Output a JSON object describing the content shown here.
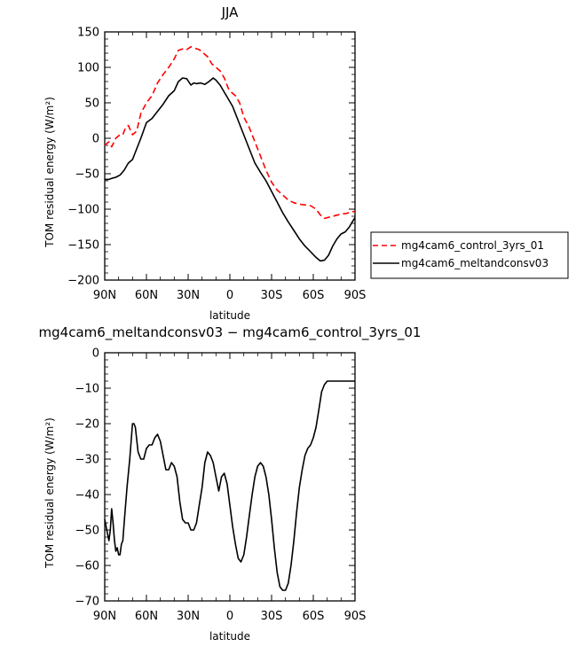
{
  "chart_data": [
    {
      "type": "line",
      "title": "JJA",
      "xlabel": "latitude",
      "ylabel": "TOM residual energy  (W/m²)",
      "xlim": [
        -90,
        90
      ],
      "xticks": [
        "90N",
        "60N",
        "30N",
        "0",
        "30S",
        "60S",
        "90S"
      ],
      "ylim": [
        -200,
        150
      ],
      "yticks": [
        "150",
        "100",
        "50",
        "0",
        "−50",
        "−100",
        "−150",
        "−200"
      ],
      "x_note": "x = latitude position, -90 = 90N (left) to 90 = 90S (right)",
      "series": [
        {
          "name": "mg4cam6_control_3yrs_01",
          "color": "#ff0000",
          "dash": "dashed",
          "x": [
            -90,
            -87,
            -85,
            -82,
            -79,
            -77,
            -75,
            -73,
            -70,
            -67,
            -64,
            -60,
            -56,
            -52,
            -48,
            -44,
            -40,
            -37,
            -34,
            -31,
            -28,
            -25,
            -22,
            -19,
            -16,
            -13,
            -10,
            -7,
            -4,
            -1,
            1,
            4,
            7,
            10,
            14,
            18,
            22,
            26,
            30,
            34,
            38,
            42,
            46,
            50,
            54,
            58,
            62,
            65,
            68,
            72,
            76,
            80,
            84,
            87,
            90
          ],
          "values": [
            -10,
            -5,
            -12,
            0,
            5,
            5,
            15,
            18,
            5,
            10,
            35,
            50,
            60,
            78,
            90,
            100,
            112,
            124,
            126,
            125,
            129,
            127,
            125,
            120,
            115,
            105,
            100,
            95,
            85,
            70,
            65,
            60,
            50,
            30,
            15,
            -5,
            -25,
            -45,
            -62,
            -73,
            -80,
            -87,
            -91,
            -93,
            -94,
            -95,
            -100,
            -108,
            -113,
            -111,
            -109,
            -107,
            -106,
            -104,
            -103
          ]
        },
        {
          "name": "mg4cam6_meltandconsv03",
          "color": "#000000",
          "dash": "solid",
          "x": [
            -90,
            -87,
            -84,
            -82,
            -79,
            -76,
            -73,
            -70,
            -67,
            -64,
            -60,
            -56,
            -52,
            -48,
            -44,
            -40,
            -37,
            -34,
            -31,
            -28,
            -26,
            -24,
            -21,
            -18,
            -15,
            -12,
            -10,
            -7,
            -4,
            -1,
            2,
            5,
            8,
            11,
            14,
            18,
            22,
            26,
            30,
            34,
            38,
            42,
            46,
            50,
            54,
            58,
            62,
            65,
            68,
            71,
            74,
            77,
            80,
            83,
            86,
            88,
            90
          ],
          "values": [
            -58,
            -58,
            -56,
            -55,
            -52,
            -45,
            -35,
            -30,
            -15,
            0,
            22,
            28,
            38,
            48,
            60,
            67,
            80,
            85,
            84,
            75,
            78,
            77,
            78,
            76,
            80,
            85,
            82,
            75,
            65,
            55,
            45,
            30,
            15,
            0,
            -15,
            -35,
            -48,
            -60,
            -75,
            -90,
            -105,
            -118,
            -130,
            -142,
            -152,
            -160,
            -168,
            -173,
            -172,
            -165,
            -152,
            -142,
            -135,
            -132,
            -125,
            -118,
            -112
          ]
        }
      ],
      "legend": "bottom-right, outside plot"
    },
    {
      "type": "line",
      "title": "mg4cam6_meltandconsv03 − mg4cam6_control_3yrs_01",
      "xlabel": "latitude",
      "ylabel": "TOM residual energy  (W/m²)",
      "xlim": [
        -90,
        90
      ],
      "xticks": [
        "90N",
        "60N",
        "30N",
        "0",
        "30S",
        "60S",
        "90S"
      ],
      "ylim": [
        -70,
        0
      ],
      "yticks": [
        "0",
        "−10",
        "−20",
        "−30",
        "−40",
        "−50",
        "−60",
        "−70"
      ],
      "series": [
        {
          "name": "difference",
          "color": "#000000",
          "dash": "solid",
          "x": [
            -90,
            -88,
            -87,
            -86,
            -85,
            -84,
            -83,
            -82,
            -81,
            -80,
            -79,
            -78,
            -77,
            -76,
            -74,
            -72,
            -70,
            -69,
            -68,
            -66,
            -64,
            -62,
            -60,
            -58,
            -56,
            -54,
            -52,
            -50,
            -48,
            -46,
            -44,
            -42,
            -40,
            -38,
            -36,
            -34,
            -32,
            -30,
            -28,
            -26,
            -24,
            -22,
            -20,
            -18,
            -16,
            -14,
            -12,
            -10,
            -8,
            -6,
            -4,
            -2,
            0,
            2,
            4,
            6,
            8,
            10,
            12,
            14,
            16,
            18,
            20,
            22,
            24,
            26,
            28,
            30,
            32,
            34,
            36,
            38,
            40,
            42,
            44,
            46,
            48,
            50,
            52,
            54,
            56,
            58,
            60,
            62,
            64,
            66,
            68,
            70,
            72,
            74,
            76,
            78,
            80,
            82,
            84,
            86,
            88,
            90
          ],
          "values": [
            -47,
            -51,
            -53,
            -50,
            -44,
            -48,
            -53,
            -56,
            -55,
            -57,
            -57,
            -54,
            -53,
            -48,
            -38,
            -30,
            -20,
            -20,
            -21,
            -28,
            -30,
            -30,
            -27,
            -26,
            -26,
            -24,
            -23,
            -25,
            -29,
            -33,
            -33,
            -31,
            -32,
            -35,
            -42,
            -47,
            -48,
            -48,
            -50,
            -50,
            -48,
            -43,
            -38,
            -31,
            -28,
            -29,
            -31,
            -35,
            -39,
            -35,
            -34,
            -37,
            -43,
            -49,
            -54,
            -58,
            -59,
            -57,
            -52,
            -46,
            -40,
            -35,
            -32,
            -31,
            -32,
            -35,
            -40,
            -47,
            -55,
            -62,
            -66,
            -67,
            -67,
            -65,
            -60,
            -53,
            -45,
            -38,
            -33,
            -29,
            -27,
            -26,
            -24,
            -21,
            -16,
            -11,
            -9,
            -8,
            -8,
            -8,
            -8,
            -8,
            -8,
            -8,
            -8,
            -8,
            -8,
            -8
          ]
        }
      ]
    }
  ]
}
